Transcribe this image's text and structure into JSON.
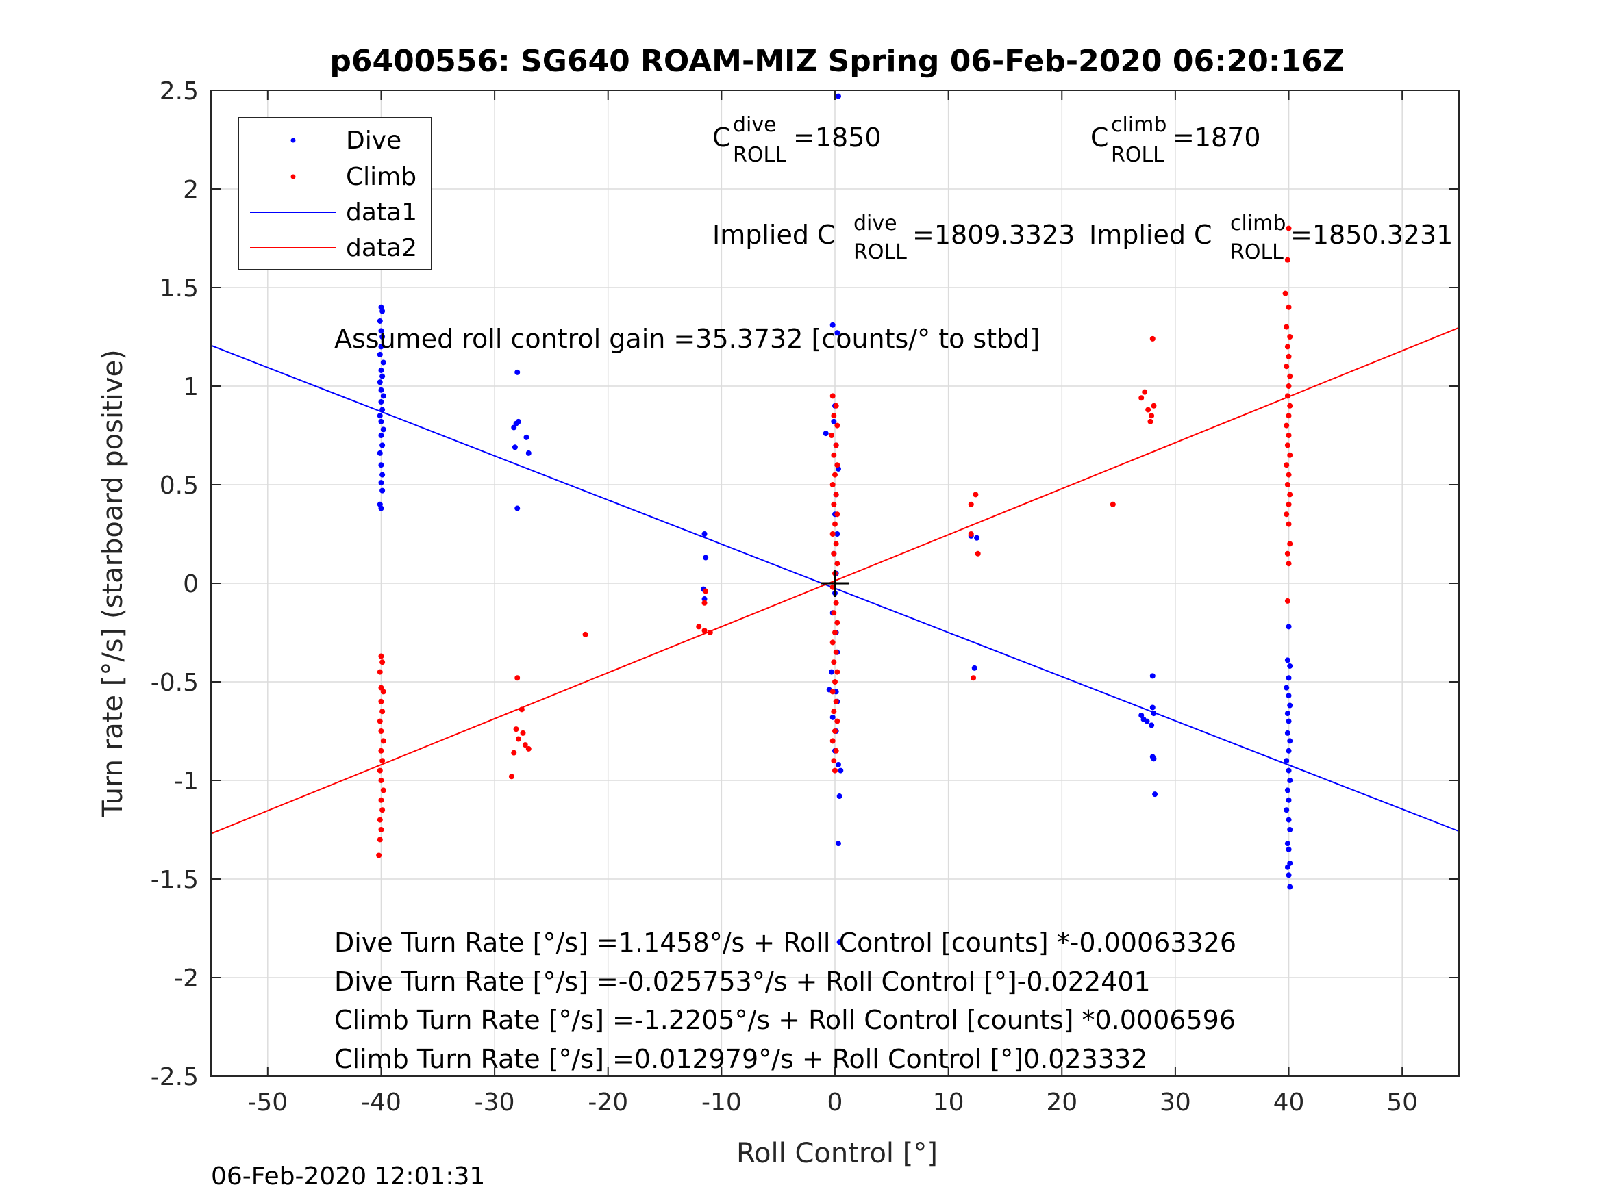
{
  "chart_data": {
    "type": "scatter",
    "title": "p6400556: SG640 ROAM-MIZ Spring 06-Feb-2020 06:20:16Z",
    "xlabel": "Roll Control [°]",
    "ylabel": "Turn rate [°/s] (starboard positive)",
    "xlim": [
      -55,
      55
    ],
    "ylim": [
      -2.5,
      2.5
    ],
    "x_ticks": [
      -50,
      -40,
      -30,
      -20,
      -10,
      0,
      10,
      20,
      30,
      40,
      50
    ],
    "x_tick_labels": [
      "-50",
      "-40",
      "-30",
      "-20",
      "-10",
      "0",
      "10",
      "20",
      "30",
      "40",
      "50"
    ],
    "y_ticks": [
      -2.5,
      -2,
      -1.5,
      -1,
      -0.5,
      0,
      0.5,
      1,
      1.5,
      2,
      2.5
    ],
    "y_tick_labels": [
      "-2.5",
      "-2",
      "-1.5",
      "-1",
      "-0.5",
      "0",
      "0.5",
      "1",
      "1.5",
      "2",
      "2.5"
    ],
    "grid": true,
    "legend_position": "top-left",
    "timestamp": "06-Feb-2020 12:01:31",
    "annotations": {
      "c_dive_base": "C",
      "c_dive_sup": "dive",
      "c_dive_sub": "ROLL",
      "c_dive_val": " =1850",
      "c_climb_base": "C",
      "c_climb_sup": "climb",
      "c_climb_sub": "ROLL",
      "c_climb_val": " =1870",
      "impl_dive_pre": "Implied C",
      "impl_dive_sup": "dive",
      "impl_dive_sub": "ROLL",
      "impl_dive_val": " =1809.3323",
      "impl_climb_pre": "Implied C",
      "impl_climb_sup": "climb",
      "impl_climb_sub": "ROLL",
      "impl_climb_val": " =1850.3231",
      "gain": "Assumed roll control gain =35.3732 [counts/° to stbd]",
      "eq1": "Dive Turn Rate [°/s] =1.1458°/s + Roll Control [counts] *-0.00063326",
      "eq2": "Dive Turn Rate [°/s] =-0.025753°/s + Roll Control [°]-0.022401",
      "eq3": "Climb Turn Rate [°/s] =-1.2205°/s + Roll Control [counts] *0.0006596",
      "eq4": "Climb Turn Rate [°/s] =0.012979°/s + Roll Control [°]0.023332"
    },
    "series": [
      {
        "name": "Dive",
        "kind": "scatter",
        "color": "#0000ff",
        "points": [
          [
            -40,
            1.4
          ],
          [
            -39.9,
            1.38
          ],
          [
            -40.1,
            1.33
          ],
          [
            -40,
            1.28
          ],
          [
            -39.9,
            1.25
          ],
          [
            -40,
            1.2
          ],
          [
            -40.1,
            1.16
          ],
          [
            -39.8,
            1.12
          ],
          [
            -40,
            1.08
          ],
          [
            -39.9,
            1.05
          ],
          [
            -40.1,
            1.02
          ],
          [
            -40,
            0.98
          ],
          [
            -39.8,
            0.95
          ],
          [
            -40,
            0.92
          ],
          [
            -39.9,
            0.88
          ],
          [
            -40.1,
            0.85
          ],
          [
            -40,
            0.82
          ],
          [
            -39.8,
            0.78
          ],
          [
            -40,
            0.75
          ],
          [
            -39.9,
            0.7
          ],
          [
            -40.1,
            0.66
          ],
          [
            -40,
            0.6
          ],
          [
            -39.9,
            0.55
          ],
          [
            -40,
            0.51
          ],
          [
            -39.9,
            0.47
          ],
          [
            -40.1,
            0.4
          ],
          [
            -40,
            0.38
          ],
          [
            -28,
            1.07
          ],
          [
            -28.1,
            0.81
          ],
          [
            -27.9,
            0.82
          ],
          [
            -28.3,
            0.79
          ],
          [
            -27.2,
            0.74
          ],
          [
            -28.2,
            0.69
          ],
          [
            -27,
            0.66
          ],
          [
            -28,
            0.38
          ],
          [
            -11.5,
            0.25
          ],
          [
            -11.4,
            0.13
          ],
          [
            -11.6,
            -0.03
          ],
          [
            -11.5,
            -0.08
          ],
          [
            -0.2,
            1.31
          ],
          [
            0.2,
            1.27
          ],
          [
            0,
            0.9
          ],
          [
            -0.1,
            0.82
          ],
          [
            0.1,
            0.7
          ],
          [
            -0.8,
            0.76
          ],
          [
            0.3,
            0.58
          ],
          [
            0.1,
            0.45
          ],
          [
            0,
            0.35
          ],
          [
            0.2,
            0.25
          ],
          [
            -0.1,
            0.15
          ],
          [
            0.1,
            0.05
          ],
          [
            0,
            -0.05
          ],
          [
            -0.2,
            -0.15
          ],
          [
            0.1,
            -0.25
          ],
          [
            0.2,
            -0.35
          ],
          [
            -0.3,
            -0.45
          ],
          [
            0.1,
            -0.55
          ],
          [
            -0.5,
            -0.54
          ],
          [
            0.2,
            -0.6
          ],
          [
            -0.2,
            -0.68
          ],
          [
            0.1,
            -0.75
          ],
          [
            0,
            -0.85
          ],
          [
            0.3,
            -0.92
          ],
          [
            0.5,
            -0.95
          ],
          [
            0.4,
            -1.08
          ],
          [
            0.3,
            -1.32
          ],
          [
            0.4,
            -1.82
          ],
          [
            0.3,
            2.47
          ],
          [
            12,
            0.24
          ],
          [
            12.5,
            0.23
          ],
          [
            12.3,
            -0.43
          ],
          [
            27,
            -0.67
          ],
          [
            27.2,
            -0.69
          ],
          [
            27.5,
            -0.7
          ],
          [
            28,
            -0.47
          ],
          [
            28,
            -0.63
          ],
          [
            28.1,
            -0.66
          ],
          [
            27.9,
            -0.72
          ],
          [
            28,
            -0.88
          ],
          [
            28.1,
            -0.89
          ],
          [
            28.2,
            -1.07
          ],
          [
            40,
            -0.22
          ],
          [
            39.9,
            -0.39
          ],
          [
            40.1,
            -0.42
          ],
          [
            40,
            -0.48
          ],
          [
            39.8,
            -0.53
          ],
          [
            40,
            -0.57
          ],
          [
            40.1,
            -0.62
          ],
          [
            39.9,
            -0.66
          ],
          [
            40,
            -0.7
          ],
          [
            39.9,
            -0.76
          ],
          [
            40.1,
            -0.8
          ],
          [
            40,
            -0.85
          ],
          [
            39.8,
            -0.9
          ],
          [
            40,
            -0.95
          ],
          [
            40.1,
            -1.0
          ],
          [
            39.9,
            -1.05
          ],
          [
            40,
            -1.1
          ],
          [
            39.8,
            -1.15
          ],
          [
            40,
            -1.2
          ],
          [
            40.1,
            -1.25
          ],
          [
            39.9,
            -1.32
          ],
          [
            40,
            -1.35
          ],
          [
            40.1,
            -1.42
          ],
          [
            39.9,
            -1.44
          ],
          [
            40,
            -1.48
          ],
          [
            40.1,
            -1.54
          ]
        ]
      },
      {
        "name": "Climb",
        "kind": "scatter",
        "color": "#ff0000",
        "points": [
          [
            -40,
            -0.37
          ],
          [
            -39.9,
            -0.4
          ],
          [
            -40.1,
            -0.45
          ],
          [
            -40,
            -0.53
          ],
          [
            -39.8,
            -0.55
          ],
          [
            -40,
            -0.6
          ],
          [
            -39.9,
            -0.65
          ],
          [
            -40.1,
            -0.7
          ],
          [
            -40,
            -0.75
          ],
          [
            -39.8,
            -0.8
          ],
          [
            -40,
            -0.85
          ],
          [
            -39.9,
            -0.9
          ],
          [
            -40.1,
            -0.95
          ],
          [
            -40,
            -1.0
          ],
          [
            -39.8,
            -1.05
          ],
          [
            -40,
            -1.1
          ],
          [
            -39.9,
            -1.15
          ],
          [
            -40.1,
            -1.2
          ],
          [
            -40,
            -1.25
          ],
          [
            -40.1,
            -1.3
          ],
          [
            -40.2,
            -1.38
          ],
          [
            -28,
            -0.48
          ],
          [
            -27.6,
            -0.64
          ],
          [
            -28.1,
            -0.74
          ],
          [
            -27.5,
            -0.76
          ],
          [
            -27.9,
            -0.79
          ],
          [
            -27.3,
            -0.82
          ],
          [
            -27,
            -0.84
          ],
          [
            -28.3,
            -0.86
          ],
          [
            -28.5,
            -0.98
          ],
          [
            -22,
            -0.26
          ],
          [
            -12,
            -0.22
          ],
          [
            -11.5,
            -0.24
          ],
          [
            -11,
            -0.25
          ],
          [
            -11.5,
            -0.1
          ],
          [
            -11.4,
            -0.04
          ],
          [
            -0.2,
            0.95
          ],
          [
            0.1,
            0.9
          ],
          [
            -0.1,
            0.85
          ],
          [
            0.2,
            0.8
          ],
          [
            -0.3,
            0.75
          ],
          [
            0.1,
            0.7
          ],
          [
            -0.1,
            0.65
          ],
          [
            0.2,
            0.6
          ],
          [
            0,
            0.55
          ],
          [
            -0.2,
            0.5
          ],
          [
            0.1,
            0.45
          ],
          [
            -0.1,
            0.4
          ],
          [
            0.2,
            0.35
          ],
          [
            0,
            0.3
          ],
          [
            -0.2,
            0.25
          ],
          [
            0.1,
            0.2
          ],
          [
            -0.1,
            0.15
          ],
          [
            0.2,
            0.1
          ],
          [
            0,
            0.05
          ],
          [
            -0.2,
            -0.02
          ],
          [
            0.1,
            -0.1
          ],
          [
            -0.1,
            -0.15
          ],
          [
            0.2,
            -0.2
          ],
          [
            0,
            -0.25
          ],
          [
            -0.2,
            -0.3
          ],
          [
            0.1,
            -0.35
          ],
          [
            -0.1,
            -0.4
          ],
          [
            0.2,
            -0.45
          ],
          [
            0,
            -0.5
          ],
          [
            -0.2,
            -0.55
          ],
          [
            0.1,
            -0.6
          ],
          [
            -0.1,
            -0.65
          ],
          [
            0.2,
            -0.7
          ],
          [
            0,
            -0.75
          ],
          [
            -0.2,
            -0.8
          ],
          [
            0.1,
            -0.85
          ],
          [
            -0.1,
            -0.9
          ],
          [
            0,
            -0.95
          ],
          [
            12,
            0.4
          ],
          [
            12.4,
            0.45
          ],
          [
            12,
            0.25
          ],
          [
            12.6,
            0.15
          ],
          [
            12.2,
            -0.48
          ],
          [
            24.5,
            0.4
          ],
          [
            27,
            0.94
          ],
          [
            27.3,
            0.97
          ],
          [
            27.6,
            0.88
          ],
          [
            27.9,
            0.85
          ],
          [
            28.1,
            0.9
          ],
          [
            27.8,
            0.82
          ],
          [
            28,
            1.24
          ],
          [
            40,
            1.8
          ],
          [
            39.9,
            1.64
          ],
          [
            39.7,
            1.47
          ],
          [
            40,
            1.4
          ],
          [
            39.8,
            1.3
          ],
          [
            40.1,
            1.25
          ],
          [
            39.9,
            1.2
          ],
          [
            40,
            1.15
          ],
          [
            39.8,
            1.1
          ],
          [
            40.1,
            1.05
          ],
          [
            40,
            1.0
          ],
          [
            39.9,
            0.95
          ],
          [
            40.1,
            0.9
          ],
          [
            40,
            0.85
          ],
          [
            39.8,
            0.8
          ],
          [
            40,
            0.75
          ],
          [
            39.9,
            0.7
          ],
          [
            40.1,
            0.65
          ],
          [
            39.8,
            0.6
          ],
          [
            40,
            0.55
          ],
          [
            39.9,
            0.5
          ],
          [
            40.1,
            0.45
          ],
          [
            40,
            0.4
          ],
          [
            39.8,
            0.35
          ],
          [
            40,
            0.3
          ],
          [
            40.1,
            0.2
          ],
          [
            39.9,
            0.15
          ],
          [
            40,
            0.1
          ],
          [
            39.9,
            -0.09
          ]
        ]
      },
      {
        "name": "data1",
        "kind": "line",
        "color": "#0000ff",
        "intercept": -0.025753,
        "slope": -0.022401
      },
      {
        "name": "data2",
        "kind": "line",
        "color": "#ff0000",
        "intercept": 0.012979,
        "slope": 0.023332
      }
    ]
  }
}
